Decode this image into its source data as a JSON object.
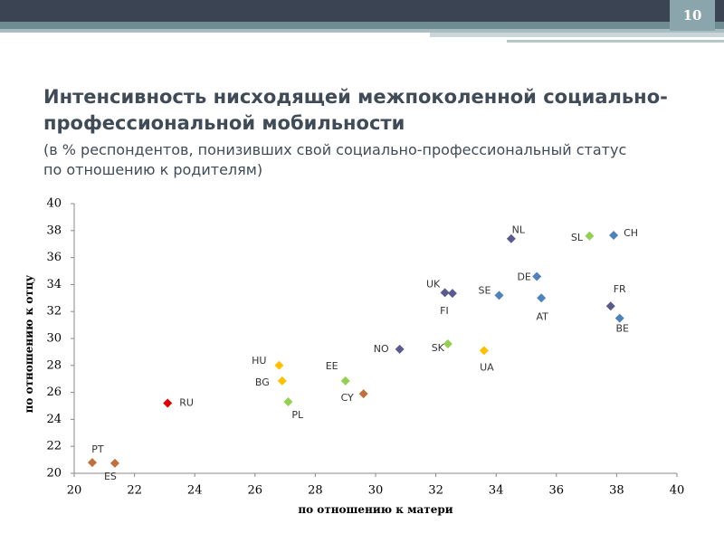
{
  "page_number": "10",
  "chart_data": {
    "type": "scatter",
    "title_line1": "Интенсивность нисходящей межпоколенной социально-",
    "title_line2": "профессиональной мобильности",
    "subtitle_line1": "(в % респондентов, понизивших свой социально-профессиональный статус",
    "subtitle_line2": "по отношению к родителям)",
    "xlabel": "по отношению к матери",
    "ylabel": "по отношению к отцу",
    "xlim": [
      20,
      40
    ],
    "ylim": [
      20,
      40
    ],
    "xticks": [
      20,
      22,
      24,
      26,
      28,
      30,
      32,
      34,
      36,
      38,
      40
    ],
    "yticks": [
      20,
      22,
      24,
      26,
      28,
      30,
      32,
      34,
      36,
      38,
      40
    ],
    "points": [
      {
        "label": "PT",
        "x": 20.6,
        "y": 20.8,
        "color": "#c0703a"
      },
      {
        "label": "ES",
        "x": 21.35,
        "y": 20.75,
        "color": "#c0703a"
      },
      {
        "label": "RU",
        "x": 23.1,
        "y": 25.2,
        "color": "#e00000"
      },
      {
        "label": "HU",
        "x": 26.8,
        "y": 28.0,
        "color": "#ffc000"
      },
      {
        "label": "BG",
        "x": 26.9,
        "y": 26.85,
        "color": "#ffc000"
      },
      {
        "label": "PL",
        "x": 27.1,
        "y": 25.3,
        "color": "#92d050"
      },
      {
        "label": "EE",
        "x": 29.0,
        "y": 26.85,
        "color": "#92d050"
      },
      {
        "label": "CY",
        "x": 29.6,
        "y": 25.9,
        "color": "#c0703a"
      },
      {
        "label": "NO",
        "x": 30.8,
        "y": 29.2,
        "color": "#5a5a8c"
      },
      {
        "label": "SK",
        "x": 32.4,
        "y": 29.6,
        "color": "#92d050"
      },
      {
        "label": "UA",
        "x": 33.6,
        "y": 29.1,
        "color": "#ffc000"
      },
      {
        "label": "UK",
        "x": 32.3,
        "y": 33.4,
        "color": "#5a5a8c"
      },
      {
        "label": "FI",
        "x": 32.55,
        "y": 33.35,
        "color": "#5a5a8c"
      },
      {
        "label": "SE",
        "x": 34.1,
        "y": 33.2,
        "color": "#4f81bd"
      },
      {
        "label": "NL",
        "x": 34.5,
        "y": 37.4,
        "color": "#5a5a8c"
      },
      {
        "label": "DE",
        "x": 35.35,
        "y": 34.6,
        "color": "#4f81bd"
      },
      {
        "label": "AT",
        "x": 35.5,
        "y": 33.0,
        "color": "#4f81bd"
      },
      {
        "label": "SL",
        "x": 37.1,
        "y": 37.6,
        "color": "#92d050"
      },
      {
        "label": "CH",
        "x": 37.9,
        "y": 37.65,
        "color": "#4f81bd"
      },
      {
        "label": "FR",
        "x": 37.8,
        "y": 32.4,
        "color": "#5a5a8c"
      },
      {
        "label": "BE",
        "x": 38.1,
        "y": 31.5,
        "color": "#4f81bd"
      }
    ]
  }
}
